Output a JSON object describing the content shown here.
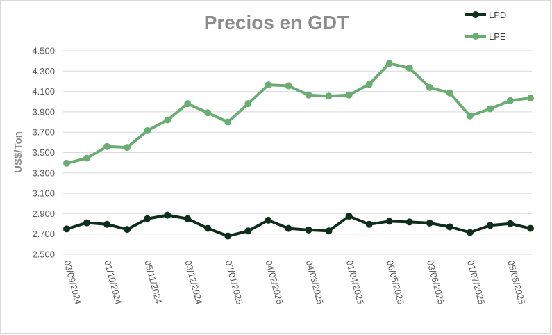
{
  "chart_data": {
    "type": "line",
    "title": "Precios en GDT",
    "ylabel": "US$/Ton",
    "xlabel": "",
    "ylim": [
      2500,
      4500
    ],
    "yticks": [
      2500,
      2700,
      2900,
      3100,
      3300,
      3500,
      3700,
      3900,
      4100,
      4300,
      4500
    ],
    "ytick_labels": [
      "2.500",
      "2.700",
      "2.900",
      "3.100",
      "3.300",
      "3.500",
      "3.700",
      "3.900",
      "4.100",
      "4.300",
      "4.500"
    ],
    "grid": "horizontal",
    "legend_position": "top-right",
    "x_tick_labels": [
      "03/09/2024",
      "01/10/2024",
      "05/11/2024",
      "03/12/2024",
      "07/01/2025",
      "04/02/2025",
      "04/03/2025",
      "01/04/2025",
      "06/05/2025",
      "03/06/2025",
      "01/07/2025",
      "05/08/2025"
    ],
    "x_tick_every": 2,
    "point_count": 24,
    "series": [
      {
        "name": "LPD",
        "color": "#0f2d1c",
        "values": [
          2750,
          2810,
          2795,
          2745,
          2850,
          2885,
          2850,
          2755,
          2680,
          2730,
          2835,
          2755,
          2740,
          2730,
          2875,
          2795,
          2825,
          2818,
          2808,
          2770,
          2715,
          2785,
          2802,
          2755
        ]
      },
      {
        "name": "LPE",
        "color": "#6aad72",
        "values": [
          3395,
          3445,
          3560,
          3550,
          3715,
          3820,
          3980,
          3890,
          3800,
          3980,
          4165,
          4155,
          4065,
          4055,
          4065,
          4170,
          4375,
          4330,
          4140,
          4085,
          3860,
          3930,
          4010,
          4035
        ]
      }
    ]
  }
}
